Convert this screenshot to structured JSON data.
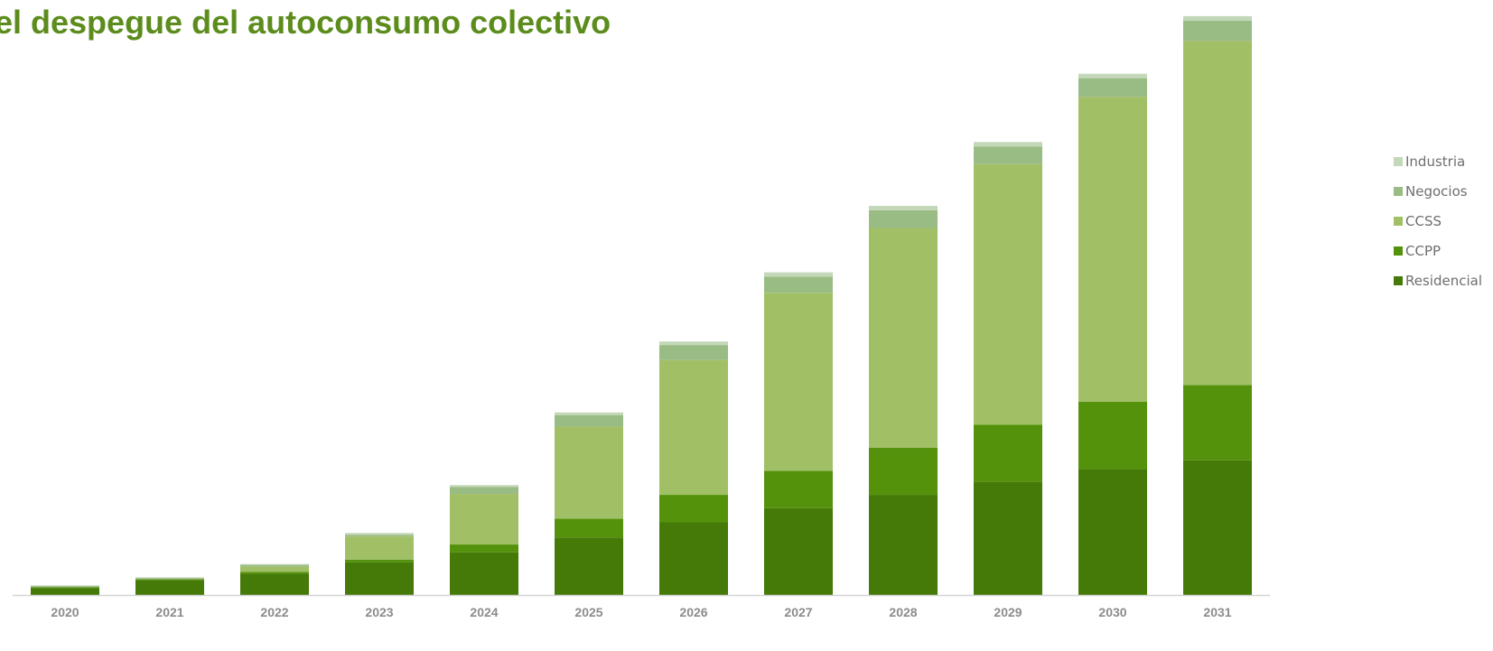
{
  "chart_data": {
    "type": "bar",
    "stacked": true,
    "title": "el despegue del autoconsumo colectivo",
    "categories": [
      "2020",
      "2021",
      "2022",
      "2023",
      "2024",
      "2025",
      "2026",
      "2027",
      "2028",
      "2029",
      "2030",
      "2031"
    ],
    "series": [
      {
        "name": "Residencial",
        "color": "#467a08",
        "values": [
          8,
          17,
          24,
          37,
          48,
          65,
          82,
          98,
          113,
          128,
          142,
          152
        ]
      },
      {
        "name": "CCPP",
        "color": "#54920c",
        "values": [
          1,
          1,
          2,
          3,
          9,
          21,
          31,
          42,
          53,
          64,
          76,
          85
        ]
      },
      {
        "name": "CCSS",
        "color": "#a1c066",
        "values": [
          0,
          0,
          6,
          26,
          57,
          104,
          152,
          201,
          248,
          294,
          344,
          388
        ]
      },
      {
        "name": "Negocios",
        "color": "#99bb84",
        "values": [
          1,
          1,
          2,
          2,
          8,
          13,
          17,
          18,
          20,
          20,
          21,
          23
        ]
      },
      {
        "name": "Industria",
        "color": "#c3d8b8",
        "values": [
          1,
          1,
          1,
          2,
          2,
          3,
          4,
          5,
          5,
          5,
          5,
          5
        ]
      }
    ],
    "legend_position": "right",
    "grid": false,
    "ylim": [
      0,
      660
    ]
  }
}
